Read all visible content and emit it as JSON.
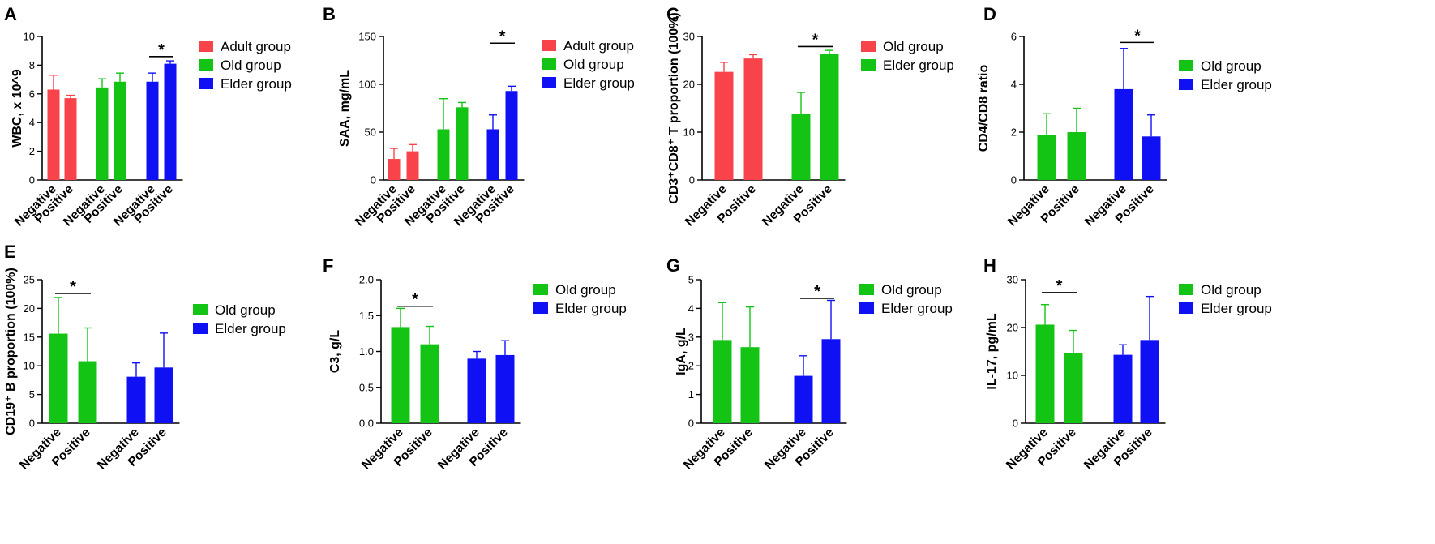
{
  "colors": {
    "adult": "#f8434a",
    "old": "#14c414",
    "elder": "#1010f5"
  },
  "chart_data": [
    {
      "panel": "A",
      "type": "bar",
      "ylabel": "WBC, x 10^9",
      "ylim": [
        0,
        10
      ],
      "yticks": [
        0,
        2,
        4,
        6,
        8,
        10
      ],
      "ytick_labels": [
        "0",
        "2",
        "4",
        "6",
        "8",
        "10"
      ],
      "bars": [
        {
          "category": "Negative",
          "group": "Adult group",
          "color_key": "adult",
          "value": 6.3,
          "error": 1.0
        },
        {
          "category": "Positive",
          "group": "Adult group",
          "color_key": "adult",
          "value": 5.7,
          "error": 0.2
        },
        {
          "category": "Negative",
          "group": "Old group",
          "color_key": "old",
          "value": 6.45,
          "error": 0.6
        },
        {
          "category": "Positive",
          "group": "Old group",
          "color_key": "old",
          "value": 6.85,
          "error": 0.6
        },
        {
          "category": "Negative",
          "group": "Elder group",
          "color_key": "elder",
          "value": 6.85,
          "error": 0.6
        },
        {
          "category": "Positive",
          "group": "Elder group",
          "color_key": "elder",
          "value": 8.1,
          "error": 0.2
        }
      ],
      "legend": [
        {
          "label": "Adult group",
          "color_key": "adult"
        },
        {
          "label": "Old group",
          "color_key": "old"
        },
        {
          "label": "Elder group",
          "color_key": "elder"
        }
      ],
      "significance": [
        {
          "bars": [
            4,
            5
          ],
          "level": 8.6,
          "label": "*"
        }
      ]
    },
    {
      "panel": "B",
      "type": "bar",
      "ylabel": "SAA, mg/mL",
      "ylim": [
        0,
        150
      ],
      "yticks": [
        0,
        50,
        100,
        150
      ],
      "ytick_labels": [
        "0",
        "50",
        "100",
        "150"
      ],
      "bars": [
        {
          "category": "Negative",
          "group": "Adult group",
          "color_key": "adult",
          "value": 22,
          "error": 11
        },
        {
          "category": "Positive",
          "group": "Adult group",
          "color_key": "adult",
          "value": 30,
          "error": 7
        },
        {
          "category": "Negative",
          "group": "Old group",
          "color_key": "old",
          "value": 53,
          "error": 32
        },
        {
          "category": "Positive",
          "group": "Old group",
          "color_key": "old",
          "value": 76,
          "error": 5
        },
        {
          "category": "Negative",
          "group": "Elder group",
          "color_key": "elder",
          "value": 53,
          "error": 15
        },
        {
          "category": "Positive",
          "group": "Elder group",
          "color_key": "elder",
          "value": 93,
          "error": 5
        }
      ],
      "legend": [
        {
          "label": "Adult group",
          "color_key": "adult"
        },
        {
          "label": "Old group",
          "color_key": "old"
        },
        {
          "label": "Elder group",
          "color_key": "elder"
        }
      ],
      "significance": [
        {
          "bars": [
            4,
            5
          ],
          "level": 143,
          "label": "*"
        }
      ]
    },
    {
      "panel": "C",
      "type": "bar",
      "ylabel": "CD3⁺CD8⁺ T proportion (100%)",
      "ylim": [
        0,
        30
      ],
      "yticks": [
        0,
        10,
        20,
        30
      ],
      "ytick_labels": [
        "0",
        "10",
        "20",
        "30"
      ],
      "bars": [
        {
          "category": "Negative",
          "group": "Old group",
          "color_key": "adult",
          "value": 22.6,
          "error": 2.0
        },
        {
          "category": "Positive",
          "group": "Old group",
          "color_key": "adult",
          "value": 25.4,
          "error": 0.8
        },
        {
          "category": "Negative",
          "group": "Elder group",
          "color_key": "old",
          "value": 13.8,
          "error": 4.5
        },
        {
          "category": "Positive",
          "group": "Elder group",
          "color_key": "old",
          "value": 26.4,
          "error": 0.7
        }
      ],
      "legend": [
        {
          "label": "Old group",
          "color_key": "adult"
        },
        {
          "label": "Elder group",
          "color_key": "old"
        }
      ],
      "significance": [
        {
          "bars": [
            2,
            3
          ],
          "level": 27.9,
          "label": "*"
        }
      ]
    },
    {
      "panel": "D",
      "type": "bar",
      "ylabel": "CD4/CD8 ratio",
      "ylim": [
        0,
        6
      ],
      "yticks": [
        0,
        2,
        4,
        6
      ],
      "ytick_labels": [
        "0",
        "2",
        "4",
        "6"
      ],
      "bars": [
        {
          "category": "Negative",
          "group": "Old group",
          "color_key": "old",
          "value": 1.87,
          "error": 0.9
        },
        {
          "category": "Positive",
          "group": "Old group",
          "color_key": "old",
          "value": 2.0,
          "error": 1.0
        },
        {
          "category": "Negative",
          "group": "Elder group",
          "color_key": "elder",
          "value": 3.8,
          "error": 1.7
        },
        {
          "category": "Positive",
          "group": "Elder group",
          "color_key": "elder",
          "value": 1.82,
          "error": 0.9
        }
      ],
      "legend": [
        {
          "label": "Old group",
          "color_key": "old"
        },
        {
          "label": "Elder group",
          "color_key": "elder"
        }
      ],
      "significance": [
        {
          "bars": [
            2,
            3
          ],
          "level": 5.75,
          "label": "*"
        }
      ]
    },
    {
      "panel": "E",
      "type": "bar",
      "ylabel": "CD19⁺ B proportion (100%)",
      "ylim": [
        0,
        25
      ],
      "yticks": [
        0,
        5,
        10,
        15,
        20,
        25
      ],
      "ytick_labels": [
        "0",
        "5",
        "10",
        "15",
        "20",
        "25"
      ],
      "bars": [
        {
          "category": "Negative",
          "group": "Old group",
          "color_key": "old",
          "value": 15.6,
          "error": 6.3
        },
        {
          "category": "Positive",
          "group": "Old group",
          "color_key": "old",
          "value": 10.8,
          "error": 5.8
        },
        {
          "category": "Negative",
          "group": "Elder group",
          "color_key": "elder",
          "value": 8.1,
          "error": 2.4
        },
        {
          "category": "Positive",
          "group": "Elder group",
          "color_key": "elder",
          "value": 9.7,
          "error": 6.0
        }
      ],
      "legend": [
        {
          "label": "Old group",
          "color_key": "old"
        },
        {
          "label": "Elder group",
          "color_key": "elder"
        }
      ],
      "significance": [
        {
          "bars": [
            0,
            1
          ],
          "level": 22.6,
          "label": "*"
        }
      ]
    },
    {
      "panel": "F",
      "type": "bar",
      "ylabel": "C3, g/L",
      "ylim": [
        0,
        2
      ],
      "yticks": [
        0,
        0.5,
        1,
        1.5,
        2
      ],
      "ytick_labels": [
        "0.0",
        "0.5",
        "1.0",
        "1.5",
        "2.0"
      ],
      "bars": [
        {
          "category": "Negative",
          "group": "Old group",
          "color_key": "old",
          "value": 1.34,
          "error": 0.26
        },
        {
          "category": "Positive",
          "group": "Old group",
          "color_key": "old",
          "value": 1.1,
          "error": 0.25
        },
        {
          "category": "Negative",
          "group": "Elder group",
          "color_key": "elder",
          "value": 0.9,
          "error": 0.1
        },
        {
          "category": "Positive",
          "group": "Elder group",
          "color_key": "elder",
          "value": 0.95,
          "error": 0.2
        }
      ],
      "legend": [
        {
          "label": "Old group",
          "color_key": "old"
        },
        {
          "label": "Elder group",
          "color_key": "elder"
        }
      ],
      "significance": [
        {
          "bars": [
            0,
            1
          ],
          "level": 1.63,
          "label": "*"
        }
      ]
    },
    {
      "panel": "G",
      "type": "bar",
      "ylabel": "IgA, g/L",
      "ylim": [
        0,
        5
      ],
      "yticks": [
        0,
        1,
        2,
        3,
        4,
        5
      ],
      "ytick_labels": [
        "0",
        "1",
        "2",
        "3",
        "4",
        "5"
      ],
      "bars": [
        {
          "category": "Negative",
          "group": "Old group",
          "color_key": "old",
          "value": 2.9,
          "error": 1.3
        },
        {
          "category": "Positive",
          "group": "Old group",
          "color_key": "old",
          "value": 2.65,
          "error": 1.4
        },
        {
          "category": "Negative",
          "group": "Elder group",
          "color_key": "elder",
          "value": 1.65,
          "error": 0.7
        },
        {
          "category": "Positive",
          "group": "Elder group",
          "color_key": "elder",
          "value": 2.93,
          "error": 1.35
        }
      ],
      "legend": [
        {
          "label": "Old group",
          "color_key": "old"
        },
        {
          "label": "Elder group",
          "color_key": "elder"
        }
      ],
      "significance": [
        {
          "bars": [
            2,
            3
          ],
          "level": 4.35,
          "label": "*"
        }
      ]
    },
    {
      "panel": "H",
      "type": "bar",
      "ylabel": "IL-17, pg/mL",
      "ylim": [
        0,
        30
      ],
      "yticks": [
        0,
        10,
        20,
        30
      ],
      "ytick_labels": [
        "0",
        "10",
        "20",
        "30"
      ],
      "bars": [
        {
          "category": "Negative",
          "group": "Old group",
          "color_key": "old",
          "value": 20.6,
          "error": 4.2
        },
        {
          "category": "Positive",
          "group": "Old group",
          "color_key": "old",
          "value": 14.6,
          "error": 4.8
        },
        {
          "category": "Negative",
          "group": "Elder group",
          "color_key": "elder",
          "value": 14.3,
          "error": 2.1
        },
        {
          "category": "Positive",
          "group": "Elder group",
          "color_key": "elder",
          "value": 17.4,
          "error": 9.1
        }
      ],
      "legend": [
        {
          "label": "Old group",
          "color_key": "old"
        },
        {
          "label": "Elder group",
          "color_key": "elder"
        }
      ],
      "significance": [
        {
          "bars": [
            0,
            1
          ],
          "level": 27.3,
          "label": "*"
        }
      ]
    }
  ]
}
